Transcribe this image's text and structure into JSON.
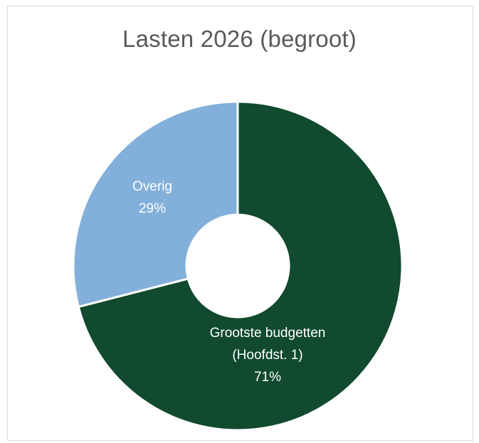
{
  "chart_data": {
    "type": "pie",
    "title": "Lasten 2026 (begroot)",
    "slices": [
      {
        "label_lines": [
          "Grootste budgetten",
          "(Hoofdst. 1)"
        ],
        "percent_label": "71%",
        "value": 71,
        "color": "#114a2e"
      },
      {
        "label_lines": [
          "Overig"
        ],
        "percent_label": "29%",
        "value": 29,
        "color": "#83b0da"
      }
    ]
  }
}
